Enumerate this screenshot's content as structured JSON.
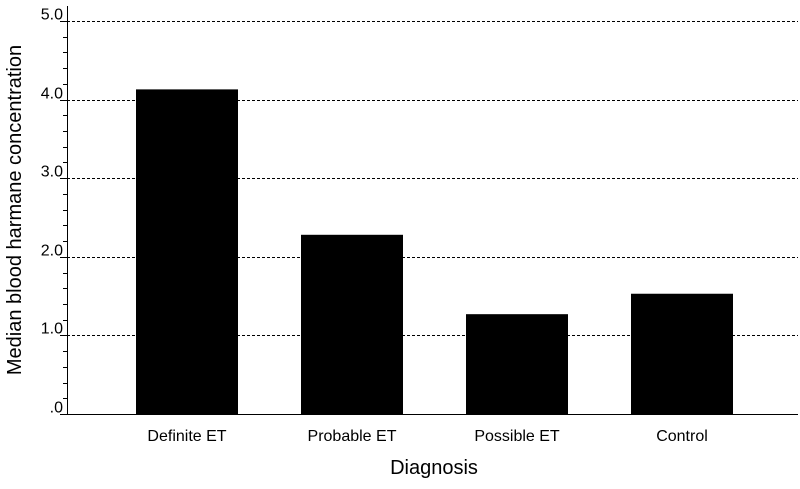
{
  "chart_data": {
    "type": "bar",
    "categories": [
      "Definite ET",
      "Probable ET",
      "Possible ET",
      "Control"
    ],
    "values": [
      4.13,
      2.28,
      1.27,
      1.53
    ],
    "xlabel": "Diagnosis",
    "ylabel": "Median blood harmane concentration",
    "ylim": [
      0,
      5.0
    ],
    "yticks": [
      {
        "value": 0,
        "label": ".0"
      },
      {
        "value": 1,
        "label": "1.0"
      },
      {
        "value": 2,
        "label": "2.0"
      },
      {
        "value": 3,
        "label": "3.0"
      },
      {
        "value": 4,
        "label": "4.0"
      },
      {
        "value": 5,
        "label": "5.0"
      }
    ],
    "grid": true,
    "bar_color": "#000000"
  }
}
